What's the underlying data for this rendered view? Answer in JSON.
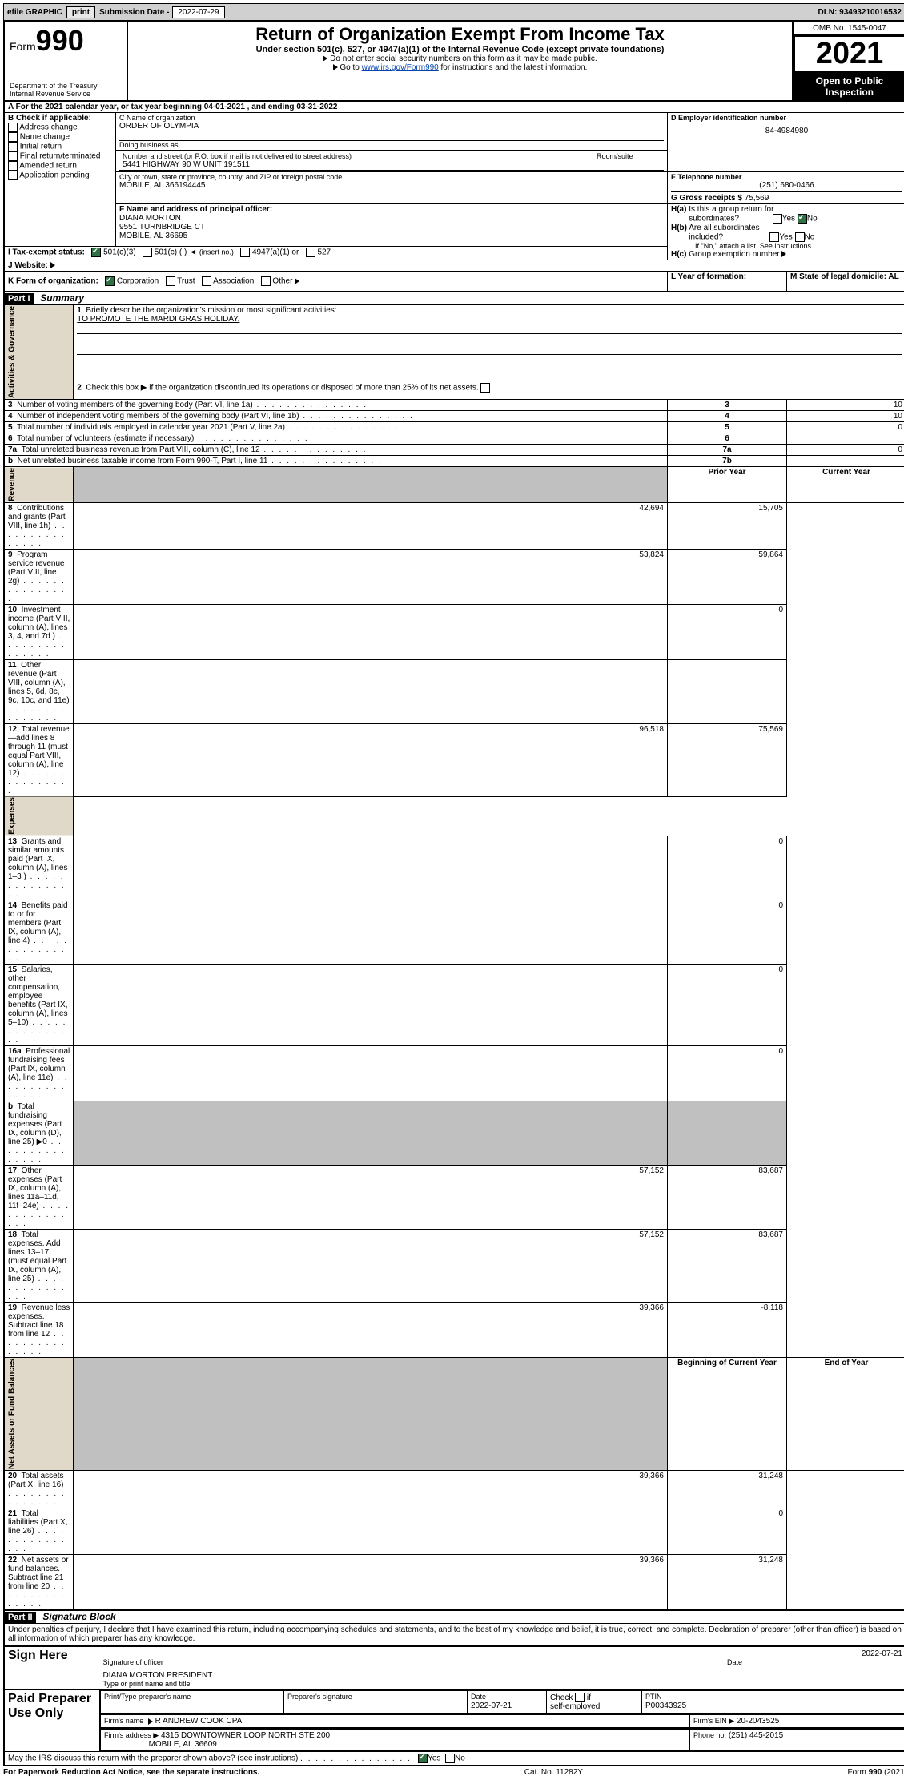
{
  "topbar": {
    "efile": "efile GRAPHIC",
    "print": "print",
    "sub_label": "Submission Date -",
    "sub_date": "2022-07-29",
    "dln": "DLN: 93493210016532"
  },
  "header": {
    "form_word": "Form",
    "form_num": "990",
    "title": "Return of Organization Exempt From Income Tax",
    "subtitle": "Under section 501(c), 527, or 4947(a)(1) of the Internal Revenue Code (except private foundations)",
    "note1": "Do not enter social security numbers on this form as it may be made public.",
    "note2_pre": "Go to ",
    "note2_link": "www.irs.gov/Form990",
    "note2_post": " for instructions and the latest information.",
    "dept": "Department of the Treasury\nInternal Revenue Service",
    "omb": "OMB No. 1545-0047",
    "year": "2021",
    "open": "Open to Public Inspection"
  },
  "sectionA": {
    "line": "A For the 2021 calendar year, or tax year beginning 04-01-2021  , and ending 03-31-2022",
    "b_label": "B Check if applicable:",
    "b_opts": [
      "Address change",
      "Name change",
      "Initial return",
      "Final return/terminated",
      "Amended return",
      "Application pending"
    ],
    "c_label": "C Name of organization",
    "c_name": "ORDER OF OLYMPIA",
    "dba_label": "Doing business as",
    "addr_label": "Number and street (or P.O. box if mail is not delivered to street address)",
    "addr": "5441 HIGHWAY 90 W UNIT 191511",
    "room_label": "Room/suite",
    "city_label": "City or town, state or province, country, and ZIP or foreign postal code",
    "city": "MOBILE, AL  366194445",
    "d_label": "D Employer identification number",
    "d_val": "84-4984980",
    "e_label": "E Telephone number",
    "e_val": "(251) 680-0466",
    "g_label": "G Gross receipts $",
    "g_val": "75,569",
    "f_label": "F Name and address of principal officer:",
    "f_name": "DIANA MORTON",
    "f_addr1": "9551 TURNBRIDGE CT",
    "f_addr2": "MOBILE, AL  36695",
    "ha_label": "H(a)  Is this a group return for subordinates?",
    "hb_label": "H(b)  Are all subordinates included?",
    "hb_note": "If \"No,\" attach a list. See instructions.",
    "hc_label": "H(c)  Group exemption number",
    "yes": "Yes",
    "no": "No",
    "i_label": "I    Tax-exempt status:",
    "i_501c3": "501(c)(3)",
    "i_501c": "501(c) (  )",
    "i_insert": "(insert no.)",
    "i_4947": "4947(a)(1) or",
    "i_527": "527",
    "j_label": "J    Website:",
    "k_label": "K Form of organization:",
    "k_corp": "Corporation",
    "k_trust": "Trust",
    "k_assoc": "Association",
    "k_other": "Other",
    "l_label": "L Year of formation:",
    "m_label": "M State of legal domicile: AL"
  },
  "part1": {
    "bar": "Part I",
    "title": "Summary",
    "q1": "Briefly describe the organization's mission or most significant activities:",
    "mission": "TO PROMOTE THE MARDI GRAS HOLIDAY.",
    "q2": "Check this box ▶      if the organization discontinued its operations or disposed of more than 25% of its net assets.",
    "vlabel_gov": "Activities & Governance",
    "vlabel_rev": "Revenue",
    "vlabel_exp": "Expenses",
    "vlabel_net": "Net Assets or Fund Balances",
    "rows_gov": [
      {
        "n": "3",
        "t": "Number of voting members of the governing body (Part VI, line 1a)",
        "box": "3",
        "v": "10"
      },
      {
        "n": "4",
        "t": "Number of independent voting members of the governing body (Part VI, line 1b)",
        "box": "4",
        "v": "10"
      },
      {
        "n": "5",
        "t": "Total number of individuals employed in calendar year 2021 (Part V, line 2a)",
        "box": "5",
        "v": "0"
      },
      {
        "n": "6",
        "t": "Total number of volunteers (estimate if necessary)",
        "box": "6",
        "v": ""
      },
      {
        "n": "7a",
        "t": "Total unrelated business revenue from Part VIII, column (C), line 12",
        "box": "7a",
        "v": "0"
      },
      {
        "n": "b",
        "t": "Net unrelated business taxable income from Form 990-T, Part I, line 11",
        "box": "7b",
        "v": ""
      }
    ],
    "col_prior": "Prior Year",
    "col_curr": "Current Year",
    "rows_rev": [
      {
        "n": "8",
        "t": "Contributions and grants (Part VIII, line 1h)",
        "p": "42,694",
        "c": "15,705"
      },
      {
        "n": "9",
        "t": "Program service revenue (Part VIII, line 2g)",
        "p": "53,824",
        "c": "59,864"
      },
      {
        "n": "10",
        "t": "Investment income (Part VIII, column (A), lines 3, 4, and 7d )",
        "p": "",
        "c": "0"
      },
      {
        "n": "11",
        "t": "Other revenue (Part VIII, column (A), lines 5, 6d, 8c, 9c, 10c, and 11e)",
        "p": "",
        "c": ""
      },
      {
        "n": "12",
        "t": "Total revenue—add lines 8 through 11 (must equal Part VIII, column (A), line 12)",
        "p": "96,518",
        "c": "75,569"
      }
    ],
    "rows_exp": [
      {
        "n": "13",
        "t": "Grants and similar amounts paid (Part IX, column (A), lines 1–3 )",
        "p": "",
        "c": "0"
      },
      {
        "n": "14",
        "t": "Benefits paid to or for members (Part IX, column (A), line 4)",
        "p": "",
        "c": "0"
      },
      {
        "n": "15",
        "t": "Salaries, other compensation, employee benefits (Part IX, column (A), lines 5–10)",
        "p": "",
        "c": "0"
      },
      {
        "n": "16a",
        "t": "Professional fundraising fees (Part IX, column (A), line 11e)",
        "p": "",
        "c": "0"
      },
      {
        "n": "b",
        "t": "Total fundraising expenses (Part IX, column (D), line 25) ▶0",
        "p": "GRAY",
        "c": "GRAY"
      },
      {
        "n": "17",
        "t": "Other expenses (Part IX, column (A), lines 11a–11d, 11f–24e)",
        "p": "57,152",
        "c": "83,687"
      },
      {
        "n": "18",
        "t": "Total expenses. Add lines 13–17 (must equal Part IX, column (A), line 25)",
        "p": "57,152",
        "c": "83,687"
      },
      {
        "n": "19",
        "t": "Revenue less expenses. Subtract line 18 from line 12",
        "p": "39,366",
        "c": "-8,118"
      }
    ],
    "col_begin": "Beginning of Current Year",
    "col_end": "End of Year",
    "rows_net": [
      {
        "n": "20",
        "t": "Total assets (Part X, line 16)",
        "p": "39,366",
        "c": "31,248"
      },
      {
        "n": "21",
        "t": "Total liabilities (Part X, line 26)",
        "p": "",
        "c": "0"
      },
      {
        "n": "22",
        "t": "Net assets or fund balances. Subtract line 21 from line 20",
        "p": "39,366",
        "c": "31,248"
      }
    ]
  },
  "part2": {
    "bar": "Part II",
    "title": "Signature Block",
    "decl": "Under penalties of perjury, I declare that I have examined this return, including accompanying schedules and statements, and to the best of my knowledge and belief, it is true, correct, and complete. Declaration of preparer (other than officer) is based on all information of which preparer has any knowledge.",
    "sign_here": "Sign Here",
    "sig_officer": "Signature of officer",
    "sig_date": "2022-07-21",
    "date_lbl": "Date",
    "officer_name": "DIANA MORTON  PRESIDENT",
    "officer_sub": "Type or print name and title",
    "paid": "Paid Preparer Use Only",
    "prep_name_lbl": "Print/Type preparer's name",
    "prep_sig_lbl": "Preparer's signature",
    "prep_date_lbl": "Date",
    "prep_date": "2022-07-21",
    "check_lbl": "Check        if self-employed",
    "ptin_lbl": "PTIN",
    "ptin": "P00343925",
    "firm_name_lbl": "Firm's name",
    "firm_name": "R ANDREW COOK CPA",
    "firm_ein_lbl": "Firm's EIN ▶",
    "firm_ein": "20-2043525",
    "firm_addr_lbl": "Firm's address ▶",
    "firm_addr1": "4315 DOWNTOWNER LOOP NORTH STE 200",
    "firm_addr2": "MOBILE, AL  36609",
    "phone_lbl": "Phone no.",
    "phone": "(251) 445-2015",
    "discuss": "May the IRS discuss this return with the preparer shown above? (see instructions)"
  },
  "footer": {
    "left": "For Paperwork Reduction Act Notice, see the separate instructions.",
    "mid": "Cat. No. 11282Y",
    "right": "Form 990 (2021)"
  }
}
